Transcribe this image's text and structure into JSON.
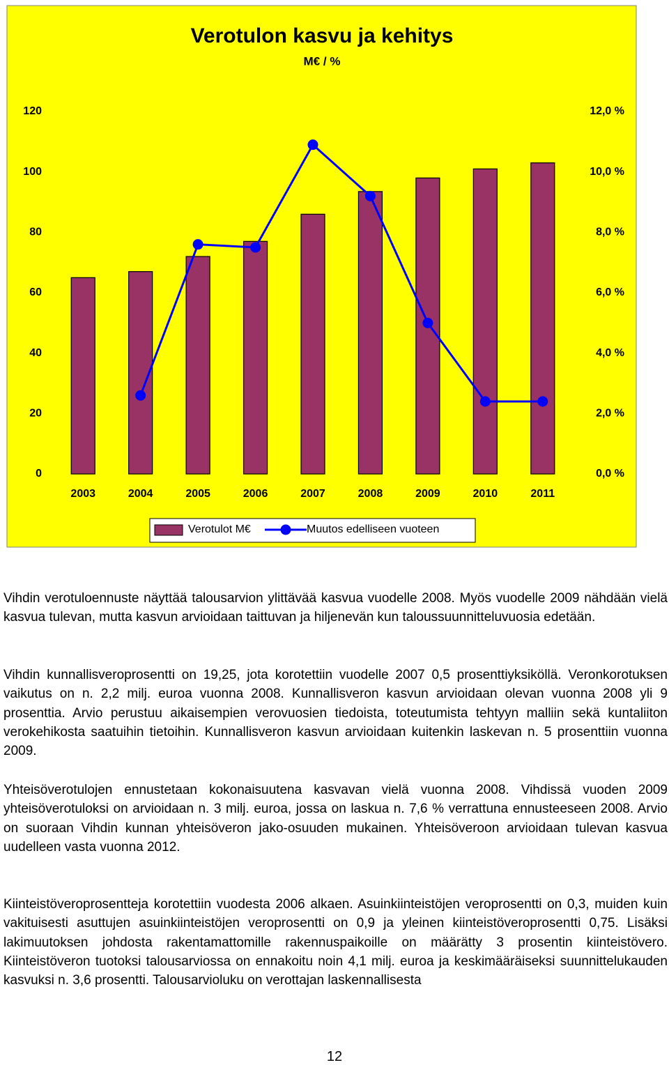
{
  "chart_data": {
    "type": "combo",
    "title": "Verotulon kasvu ja kehitys",
    "subtitle": "M€ / %",
    "categories": [
      "2003",
      "2004",
      "2005",
      "2006",
      "2007",
      "2008",
      "2009",
      "2010",
      "2011"
    ],
    "series": [
      {
        "name": "Verotulot M€",
        "color": "#993366",
        "type": "bar",
        "values": [
          65,
          67,
          72,
          77,
          86,
          93.5,
          98,
          101,
          103
        ]
      },
      {
        "name": "Muutos edelliseen vuoteen",
        "color": "#0000ff",
        "type": "line",
        "axis": "y2",
        "values": [
          null,
          2.6,
          7.6,
          7.5,
          10.9,
          9.2,
          5.0,
          2.4,
          2.4
        ]
      }
    ],
    "ylim": [
      0,
      120
    ],
    "yticks": [
      0,
      20,
      40,
      60,
      80,
      100,
      120
    ],
    "y2lim": [
      0,
      12
    ],
    "y2ticks": [
      {
        "value": 0,
        "label": "0,0 %"
      },
      {
        "value": 2,
        "label": "2,0 %"
      },
      {
        "value": 4,
        "label": "4,0 %"
      },
      {
        "value": 6,
        "label": "6,0 %"
      },
      {
        "value": 8,
        "label": "8,0 %"
      },
      {
        "value": 10,
        "label": "10,0 %"
      },
      {
        "value": 12,
        "label": "12,0 %"
      }
    ],
    "background": "#ffff00",
    "legend": "bottom"
  },
  "paragraphs": [
    "Vihdin verotuloennuste näyttää talousarvion ylittävää kasvua vuodelle 2008. Myös vuodelle 2009 nähdään vielä kasvua tulevan, mutta kasvun arvioidaan taittuvan ja hiljenevän kun taloussuunnitteluvuosia edetään.",
    "Vihdin kunnallisveroprosentti on 19,25, jota korotettiin vuodelle 2007 0,5 prosenttiyksiköllä. Veronkorotuksen vaikutus on n. 2,2 milj. euroa vuonna 2008. Kunnallisveron kasvun arvioidaan olevan vuonna 2008 yli 9 prosenttia. Arvio perustuu aikaisempien verovuosien tiedoista, toteutumista tehtyyn malliin sekä kuntaliiton verokehikosta saatuihin tietoihin. Kunnallisveron kasvun arvioidaan kuitenkin laskevan n. 5 prosenttiin vuonna 2009.",
    "Yhteisöverotulojen ennustetaan kokonaisuutena kasvavan vielä vuonna 2008. Vihdissä vuoden 2009 yhteisöverotuloksi on arvioidaan n. 3 milj. euroa, jossa on laskua n. 7,6 % verrattuna ennusteeseen 2008. Arvio on suoraan Vihdin kunnan yhteisöveron jako-osuuden mukainen. Yhteisöveroon arvioidaan tulevan kasvua uudelleen vasta vuonna 2012.",
    "Kiinteistöveroprosentteja korotettiin vuodesta 2006 alkaen. Asuinkiinteistöjen veroprosentti on 0,3, muiden kuin vakituisesti asuttujen asuinkiinteistöjen veroprosentti on 0,9 ja yleinen kiinteistöveroprosentti 0,75. Lisäksi lakimuutoksen johdosta rakentamattomille rakennuspaikoille on määrätty 3 prosentin kiinteistövero. Kiinteistöveron tuotoksi talousarviossa on ennakoitu noin 4,1 milj. euroa ja keskimääräiseksi suunnittelukauden kasvuksi n. 3,6 prosentti. Talousarvioluku on verottajan laskennallisesta"
  ],
  "page_number": "12"
}
